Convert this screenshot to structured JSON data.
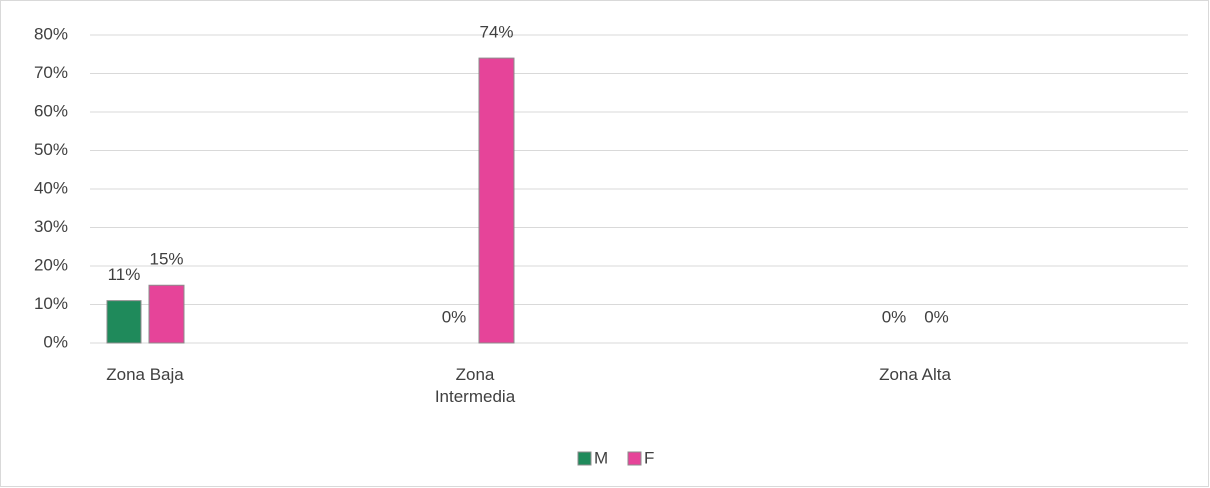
{
  "chart_data": {
    "type": "bar",
    "categories": [
      "Zona Baja",
      "Zona Intermedia",
      "Zona Alta"
    ],
    "series": [
      {
        "name": "M",
        "color": "#1f8a5b",
        "values": [
          11,
          0,
          0
        ],
        "value_labels": [
          "11%",
          "0%",
          "0%"
        ]
      },
      {
        "name": "F",
        "color": "#e64499",
        "values": [
          15,
          74,
          0
        ],
        "value_labels": [
          "15%",
          "74%",
          "0%"
        ]
      }
    ],
    "ylim": [
      0,
      80
    ],
    "yticks": [
      {
        "value": 0,
        "label": "0%"
      },
      {
        "value": 10,
        "label": "10%"
      },
      {
        "value": 20,
        "label": "20%"
      },
      {
        "value": 30,
        "label": "30%"
      },
      {
        "value": 40,
        "label": "40%"
      },
      {
        "value": 50,
        "label": "50%"
      },
      {
        "value": 60,
        "label": "60%"
      },
      {
        "value": 70,
        "label": "70%"
      },
      {
        "value": 80,
        "label": "80%"
      }
    ],
    "grid": true,
    "legend": "bottom"
  }
}
